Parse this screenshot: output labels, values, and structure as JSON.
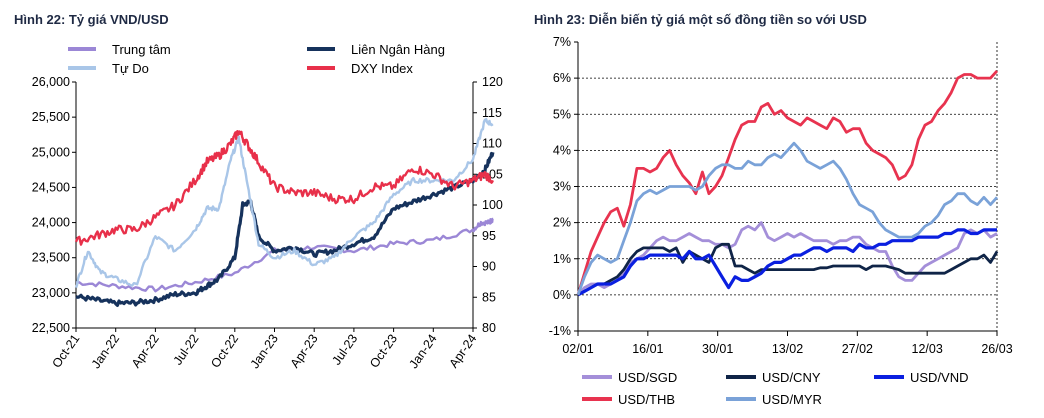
{
  "chart_data": [
    {
      "type": "line",
      "title": "Hình 22: Tỷ giá VND/USD",
      "x_ticks": [
        "Oct-21",
        "Jan-22",
        "Apr-22",
        "Jul-22",
        "Oct-22",
        "Jan-23",
        "Apr-23",
        "Jul-23",
        "Oct-23",
        "Jan-24",
        "Apr-24"
      ],
      "y_left": {
        "range": [
          22500,
          26000
        ],
        "ticks": [
          "22,500",
          "23,000",
          "23,500",
          "24,000",
          "24,500",
          "25,000",
          "25,500",
          "26,000"
        ]
      },
      "y_right": {
        "range": [
          80,
          120
        ],
        "ticks": [
          "80",
          "85",
          "90",
          "95",
          "100",
          "105",
          "110",
          "115",
          "120"
        ]
      },
      "legend_position": "top",
      "series": [
        {
          "name": "Trung tâm",
          "color": "#9b87d6",
          "axis": "left",
          "x": [
            0,
            1,
            2,
            3,
            4,
            5,
            6,
            7,
            8,
            9,
            10,
            10.2,
            10.4,
            10.5
          ],
          "values": [
            23150,
            23100,
            23050,
            23150,
            23280,
            23600,
            23650,
            23600,
            23700,
            23750,
            23900,
            24000,
            24000,
            24050
          ]
        },
        {
          "name": "Liên Ngân Hàng",
          "color": "#16325c",
          "axis": "left",
          "x": [
            0,
            0.5,
            1,
            1.5,
            2,
            2.5,
            3,
            3.3,
            3.6,
            4,
            4.2,
            4.4,
            4.6,
            5,
            5.5,
            6,
            6.5,
            7,
            7.5,
            8,
            8.5,
            9,
            9.5,
            10,
            10.3,
            10.5
          ],
          "values": [
            22950,
            22900,
            22850,
            22860,
            22900,
            22980,
            23000,
            23100,
            23200,
            23500,
            24250,
            24300,
            23800,
            23600,
            23650,
            23550,
            23600,
            23700,
            23800,
            24200,
            24300,
            24400,
            24500,
            24600,
            24750,
            25000
          ]
        },
        {
          "name": "Tự Do",
          "color": "#a9c6e8",
          "axis": "left",
          "x": [
            0,
            0.3,
            0.6,
            1,
            1.5,
            2,
            2.5,
            3,
            3.3,
            3.6,
            3.9,
            4.1,
            4.3,
            4.6,
            5,
            5.5,
            6,
            6.5,
            7,
            7.5,
            8,
            8.5,
            9,
            9.5,
            10,
            10.3,
            10.5
          ],
          "values": [
            23100,
            23600,
            23300,
            23200,
            23100,
            23800,
            23600,
            23900,
            24200,
            24200,
            24900,
            25200,
            24600,
            23700,
            23500,
            23600,
            23400,
            23500,
            23800,
            24000,
            24400,
            24600,
            24600,
            24600,
            24900,
            25450,
            25400
          ]
        },
        {
          "name": "DXY Index",
          "color": "#e8304a",
          "axis": "right",
          "x": [
            0,
            0.5,
            1,
            1.5,
            2,
            2.5,
            3,
            3.3,
            3.6,
            3.9,
            4.1,
            4.3,
            4.6,
            5,
            5.5,
            6,
            6.5,
            7,
            7.5,
            8,
            8.5,
            9,
            9.5,
            10,
            10.3,
            10.5
          ],
          "values": [
            94,
            95,
            96,
            96,
            98,
            100,
            104,
            107,
            108,
            110,
            112,
            110,
            107,
            103,
            102,
            102,
            101,
            101,
            103,
            103,
            106,
            105,
            103,
            104,
            105,
            104
          ]
        }
      ]
    },
    {
      "type": "line",
      "title": "Hình 23: Diễn biến tỷ giá một số đồng tiền so với USD",
      "x_ticks": [
        "02/01",
        "16/01",
        "30/01",
        "13/02",
        "27/02",
        "12/03",
        "26/03"
      ],
      "y_left": {
        "range": [
          -1,
          7
        ],
        "ticks": [
          "-1%",
          "0%",
          "1%",
          "2%",
          "3%",
          "4%",
          "5%",
          "6%",
          "7%"
        ]
      },
      "legend_position": "bottom",
      "series": [
        {
          "name": "USD/SGD",
          "color": "#a48fd9",
          "x": [
            0,
            1,
            2,
            3,
            4,
            5,
            6,
            7,
            8,
            9,
            10,
            11,
            12,
            13,
            14,
            15,
            16,
            17,
            18,
            19,
            20,
            21,
            22,
            23,
            24,
            25,
            26,
            27,
            28,
            29,
            30,
            31,
            32,
            33,
            34,
            35,
            36,
            37,
            38,
            39,
            40,
            41,
            42,
            43,
            44,
            45,
            46,
            47,
            48,
            49,
            50,
            51,
            52,
            53,
            54,
            55,
            56,
            57,
            58,
            59,
            60,
            61,
            62,
            63,
            64
          ],
          "values": [
            0,
            0.2,
            0.3,
            0.3,
            0.2,
            0.3,
            0.4,
            0.6,
            0.9,
            1.0,
            1.1,
            1.3,
            1.5,
            1.6,
            1.5,
            1.5,
            1.6,
            1.7,
            1.6,
            1.5,
            1.5,
            1.4,
            1.4,
            1.3,
            1.4,
            1.8,
            1.9,
            1.8,
            2.0,
            1.6,
            1.5,
            1.6,
            1.7,
            1.6,
            1.7,
            1.6,
            1.5,
            1.5,
            1.5,
            1.4,
            1.5,
            1.5,
            1.6,
            1.6,
            1.4,
            1.3,
            1.2,
            1.2,
            0.8,
            0.5,
            0.4,
            0.4,
            0.6,
            0.8,
            0.9,
            1.0,
            1.1,
            1.2,
            1.3,
            1.7,
            1.8,
            1.7,
            1.8,
            1.6,
            1.7
          ]
        },
        {
          "name": "USD/CNY",
          "color": "#0f2447",
          "x": [
            0,
            1,
            2,
            3,
            4,
            5,
            6,
            7,
            8,
            9,
            10,
            11,
            12,
            13,
            14,
            15,
            16,
            17,
            18,
            19,
            20,
            21,
            22,
            23,
            24,
            25,
            26,
            27,
            28,
            29,
            30,
            31,
            32,
            33,
            34,
            35,
            36,
            37,
            38,
            39,
            40,
            41,
            42,
            43,
            44,
            45,
            46,
            47,
            48,
            49,
            50,
            51,
            52,
            53,
            54,
            55,
            56,
            57,
            58,
            59,
            60,
            61,
            62,
            63,
            64
          ],
          "values": [
            0,
            0.1,
            0.2,
            0.3,
            0.3,
            0.4,
            0.5,
            0.7,
            1.0,
            1.2,
            1.3,
            1.3,
            1.3,
            1.3,
            1.2,
            1.3,
            0.9,
            1.2,
            1.1,
            1.0,
            0.9,
            1.3,
            1.4,
            1.4,
            0.8,
            0.8,
            0.7,
            0.6,
            0.7,
            0.7,
            0.7,
            0.7,
            0.7,
            0.7,
            0.7,
            0.7,
            0.7,
            0.75,
            0.75,
            0.8,
            0.8,
            0.8,
            0.8,
            0.8,
            0.7,
            0.8,
            0.8,
            0.8,
            0.75,
            0.7,
            0.6,
            0.6,
            0.6,
            0.6,
            0.6,
            0.6,
            0.6,
            0.7,
            0.8,
            0.9,
            1.0,
            1.0,
            1.1,
            0.9,
            1.2
          ]
        },
        {
          "name": "USD/VND",
          "color": "#0a1fe0",
          "x": [
            0,
            1,
            2,
            3,
            4,
            5,
            6,
            7,
            8,
            9,
            10,
            11,
            12,
            13,
            14,
            15,
            16,
            17,
            18,
            19,
            20,
            21,
            22,
            23,
            24,
            25,
            26,
            27,
            28,
            29,
            30,
            31,
            32,
            33,
            34,
            35,
            36,
            37,
            38,
            39,
            40,
            41,
            42,
            43,
            44,
            45,
            46,
            47,
            48,
            49,
            50,
            51,
            52,
            53,
            54,
            55,
            56,
            57,
            58,
            59,
            60,
            61,
            62,
            63,
            64
          ],
          "values": [
            0,
            0.1,
            0.2,
            0.3,
            0.3,
            0.3,
            0.4,
            0.5,
            0.8,
            1.0,
            1.0,
            1.1,
            1.1,
            1.1,
            1.1,
            1.1,
            1.0,
            1.2,
            1.0,
            1.0,
            1.1,
            0.8,
            0.5,
            0.2,
            0.5,
            0.4,
            0.4,
            0.5,
            0.6,
            0.8,
            0.9,
            0.9,
            1.0,
            1.1,
            1.1,
            1.2,
            1.3,
            1.3,
            1.2,
            1.3,
            1.3,
            1.3,
            1.2,
            1.4,
            1.3,
            1.3,
            1.4,
            1.4,
            1.5,
            1.5,
            1.5,
            1.5,
            1.6,
            1.6,
            1.6,
            1.6,
            1.7,
            1.7,
            1.8,
            1.8,
            1.7,
            1.7,
            1.8,
            1.8,
            1.8
          ]
        },
        {
          "name": "USD/THB",
          "color": "#e8334f",
          "x": [
            0,
            1,
            2,
            3,
            4,
            5,
            6,
            7,
            8,
            9,
            10,
            11,
            12,
            13,
            14,
            15,
            16,
            17,
            18,
            19,
            20,
            21,
            22,
            23,
            24,
            25,
            26,
            27,
            28,
            29,
            30,
            31,
            32,
            33,
            34,
            35,
            36,
            37,
            38,
            39,
            40,
            41,
            42,
            43,
            44,
            45,
            46,
            47,
            48,
            49,
            50,
            51,
            52,
            53,
            54,
            55,
            56,
            57,
            58,
            59,
            60,
            61,
            62,
            63,
            64
          ],
          "values": [
            0,
            0.6,
            1.2,
            1.6,
            2.0,
            2.3,
            2.4,
            1.9,
            2.5,
            3.5,
            3.5,
            3.4,
            3.5,
            3.8,
            4.0,
            3.6,
            3.3,
            3.1,
            2.8,
            3.4,
            2.8,
            3.0,
            3.3,
            3.8,
            4.3,
            4.7,
            4.8,
            4.8,
            5.2,
            5.3,
            5.0,
            5.1,
            4.9,
            4.8,
            4.7,
            4.9,
            4.8,
            4.7,
            4.6,
            4.9,
            4.8,
            4.5,
            4.6,
            4.6,
            4.2,
            4.0,
            3.9,
            3.8,
            3.6,
            3.2,
            3.3,
            3.6,
            4.3,
            4.7,
            4.8,
            5.1,
            5.3,
            5.6,
            6.0,
            6.1,
            6.1,
            6.0,
            6.0,
            6.0,
            6.2
          ]
        },
        {
          "name": "USD/MYR",
          "color": "#7aa2d8",
          "x": [
            0,
            1,
            2,
            3,
            4,
            5,
            6,
            7,
            8,
            9,
            10,
            11,
            12,
            13,
            14,
            15,
            16,
            17,
            18,
            19,
            20,
            21,
            22,
            23,
            24,
            25,
            26,
            27,
            28,
            29,
            30,
            31,
            32,
            33,
            34,
            35,
            36,
            37,
            38,
            39,
            40,
            41,
            42,
            43,
            44,
            45,
            46,
            47,
            48,
            49,
            50,
            51,
            52,
            53,
            54,
            55,
            56,
            57,
            58,
            59,
            60,
            61,
            62,
            63,
            64
          ],
          "values": [
            0,
            0.5,
            0.9,
            1.1,
            1.0,
            0.9,
            1.0,
            1.5,
            2.0,
            2.6,
            2.8,
            2.9,
            2.8,
            2.9,
            3.0,
            3.0,
            3.0,
            3.0,
            2.9,
            3.0,
            3.3,
            3.5,
            3.6,
            3.6,
            3.5,
            3.5,
            3.7,
            3.6,
            3.6,
            3.8,
            3.9,
            3.8,
            4.0,
            4.2,
            4.0,
            3.7,
            3.6,
            3.5,
            3.6,
            3.7,
            3.5,
            3.2,
            2.8,
            2.5,
            2.4,
            2.3,
            2.0,
            1.8,
            1.7,
            1.6,
            1.6,
            1.6,
            1.7,
            1.9,
            2.0,
            2.2,
            2.5,
            2.6,
            2.8,
            2.8,
            2.6,
            2.5,
            2.7,
            2.5,
            2.7
          ]
        }
      ]
    }
  ]
}
